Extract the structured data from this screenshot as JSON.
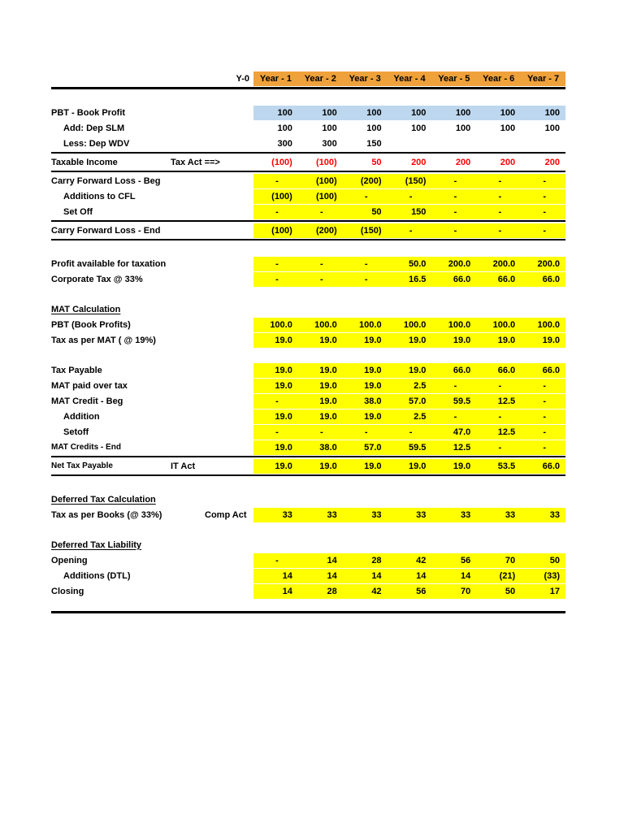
{
  "colors": {
    "header_bg": "#EFA13B",
    "highlight_bg": "#FFFF00",
    "blue_bg": "#BDD7EE",
    "negative_red": "#FF0000"
  },
  "header": {
    "corner_label": "Y-0",
    "years": [
      "Year - 1",
      "Year - 2",
      "Year - 3",
      "Year - 4",
      "Year - 5",
      "Year - 6",
      "Year - 7"
    ]
  },
  "rows": [
    {
      "type": "spacer"
    },
    {
      "type": "row",
      "label": "PBT - Book Profit",
      "note": "",
      "values": [
        "100",
        "100",
        "100",
        "100",
        "100",
        "100",
        "100"
      ],
      "bg": "blue"
    },
    {
      "type": "row",
      "label": "Add: Dep SLM",
      "indent": true,
      "note": "",
      "values": [
        "100",
        "100",
        "100",
        "100",
        "100",
        "100",
        "100"
      ],
      "bg": "none"
    },
    {
      "type": "row",
      "label": "Less: Dep WDV",
      "indent": true,
      "note": "",
      "values": [
        "300",
        "300",
        "150",
        "",
        "",
        "",
        ""
      ],
      "bg": "none"
    },
    {
      "type": "row",
      "label": "Taxable Income",
      "note": "Tax Act ==>",
      "values": [
        "(100)",
        "(100)",
        "50",
        "200",
        "200",
        "200",
        "200"
      ],
      "bg": "none",
      "color": "red",
      "border_top": true,
      "border_bottom": true
    },
    {
      "type": "row",
      "label": "Carry Forward Loss - Beg",
      "note": "",
      "values": [
        "-",
        "(100)",
        "(200)",
        "(150)",
        "-",
        "-",
        "-"
      ],
      "bg": "yellow"
    },
    {
      "type": "row",
      "label": "Additions to CFL",
      "indent": true,
      "note": "",
      "values": [
        "(100)",
        "(100)",
        "-",
        "-",
        "-",
        "-",
        "-"
      ],
      "bg": "yellow"
    },
    {
      "type": "row",
      "label": "Set Off",
      "indent": true,
      "note": "",
      "values": [
        "-",
        "-",
        "50",
        "150",
        "-",
        "-",
        "-"
      ],
      "bg": "yellow"
    },
    {
      "type": "row",
      "label": "Carry Forward Loss - End",
      "note": "",
      "values": [
        "(100)",
        "(200)",
        "(150)",
        "-",
        "-",
        "-",
        "-"
      ],
      "bg": "yellow",
      "border_top": true,
      "border_bottom": true
    },
    {
      "type": "spacer"
    },
    {
      "type": "row",
      "label": "Profit available for taxation",
      "note": "",
      "values": [
        "-",
        "-",
        "-",
        "50.0",
        "200.0",
        "200.0",
        "200.0"
      ],
      "bg": "yellow"
    },
    {
      "type": "row",
      "label": "Corporate Tax @ 33%",
      "note": "",
      "values": [
        "-",
        "-",
        "-",
        "16.5",
        "66.0",
        "66.0",
        "66.0"
      ],
      "bg": "yellow"
    },
    {
      "type": "spacer"
    },
    {
      "type": "heading",
      "label": "MAT Calculation"
    },
    {
      "type": "row",
      "label": "PBT (Book Profits)",
      "note": "",
      "values": [
        "100.0",
        "100.0",
        "100.0",
        "100.0",
        "100.0",
        "100.0",
        "100.0"
      ],
      "bg": "yellow"
    },
    {
      "type": "row",
      "label": "Tax as per MAT ( @ 19%)",
      "note": "",
      "values": [
        "19.0",
        "19.0",
        "19.0",
        "19.0",
        "19.0",
        "19.0",
        "19.0"
      ],
      "bg": "yellow"
    },
    {
      "type": "spacer"
    },
    {
      "type": "row",
      "label": "Tax Payable",
      "note": "",
      "values": [
        "19.0",
        "19.0",
        "19.0",
        "19.0",
        "66.0",
        "66.0",
        "66.0"
      ],
      "bg": "yellow"
    },
    {
      "type": "row",
      "label": "MAT paid over tax",
      "note": "",
      "values": [
        "19.0",
        "19.0",
        "19.0",
        "2.5",
        "-",
        "-",
        "-"
      ],
      "bg": "yellow"
    },
    {
      "type": "row",
      "label": "MAT Credit - Beg",
      "note": "",
      "values": [
        "-",
        "19.0",
        "38.0",
        "57.0",
        "59.5",
        "12.5",
        "-"
      ],
      "bg": "yellow"
    },
    {
      "type": "row",
      "label": "Addition",
      "indent": true,
      "note": "",
      "values": [
        "19.0",
        "19.0",
        "19.0",
        "2.5",
        "-",
        "-",
        "-"
      ],
      "bg": "yellow"
    },
    {
      "type": "row",
      "label": "Setoff",
      "indent": true,
      "note": "",
      "values": [
        "-",
        "-",
        "-",
        "-",
        "47.0",
        "12.5",
        "-"
      ],
      "bg": "yellow"
    },
    {
      "type": "row",
      "label": "MAT Credits - End",
      "small_label": true,
      "note": "",
      "values": [
        "19.0",
        "38.0",
        "57.0",
        "59.5",
        "12.5",
        "-",
        "-"
      ],
      "bg": "yellow"
    },
    {
      "type": "row",
      "label": "Net Tax Payable",
      "small_label": true,
      "note": "IT Act",
      "values": [
        "19.0",
        "19.0",
        "19.0",
        "19.0",
        "19.0",
        "53.5",
        "66.0"
      ],
      "bg": "yellow",
      "border_top": true,
      "border_bottom": true
    },
    {
      "type": "spacer"
    },
    {
      "type": "heading",
      "label": "Deferred Tax Calculation"
    },
    {
      "type": "row",
      "label": "Tax as per Books (@ 33%)",
      "note": "Comp Act",
      "note_shift": true,
      "values": [
        "33",
        "33",
        "33",
        "33",
        "33",
        "33",
        "33"
      ],
      "bg": "yellow"
    },
    {
      "type": "spacer"
    },
    {
      "type": "heading",
      "label": "Deferred Tax Liability"
    },
    {
      "type": "row",
      "label": "Opening",
      "note": "",
      "values": [
        "-",
        "14",
        "28",
        "42",
        "56",
        "70",
        "50"
      ],
      "bg": "yellow"
    },
    {
      "type": "row",
      "label": "Additions (DTL)",
      "indent": true,
      "note": "",
      "values": [
        "14",
        "14",
        "14",
        "14",
        "14",
        "(21)",
        "(33)"
      ],
      "bg": "yellow"
    },
    {
      "type": "row",
      "label": "Closing",
      "note": "",
      "values": [
        "14",
        "28",
        "42",
        "56",
        "70",
        "50",
        "17"
      ],
      "bg": "yellow"
    },
    {
      "type": "spacer",
      "h": 14
    },
    {
      "type": "rule"
    }
  ]
}
